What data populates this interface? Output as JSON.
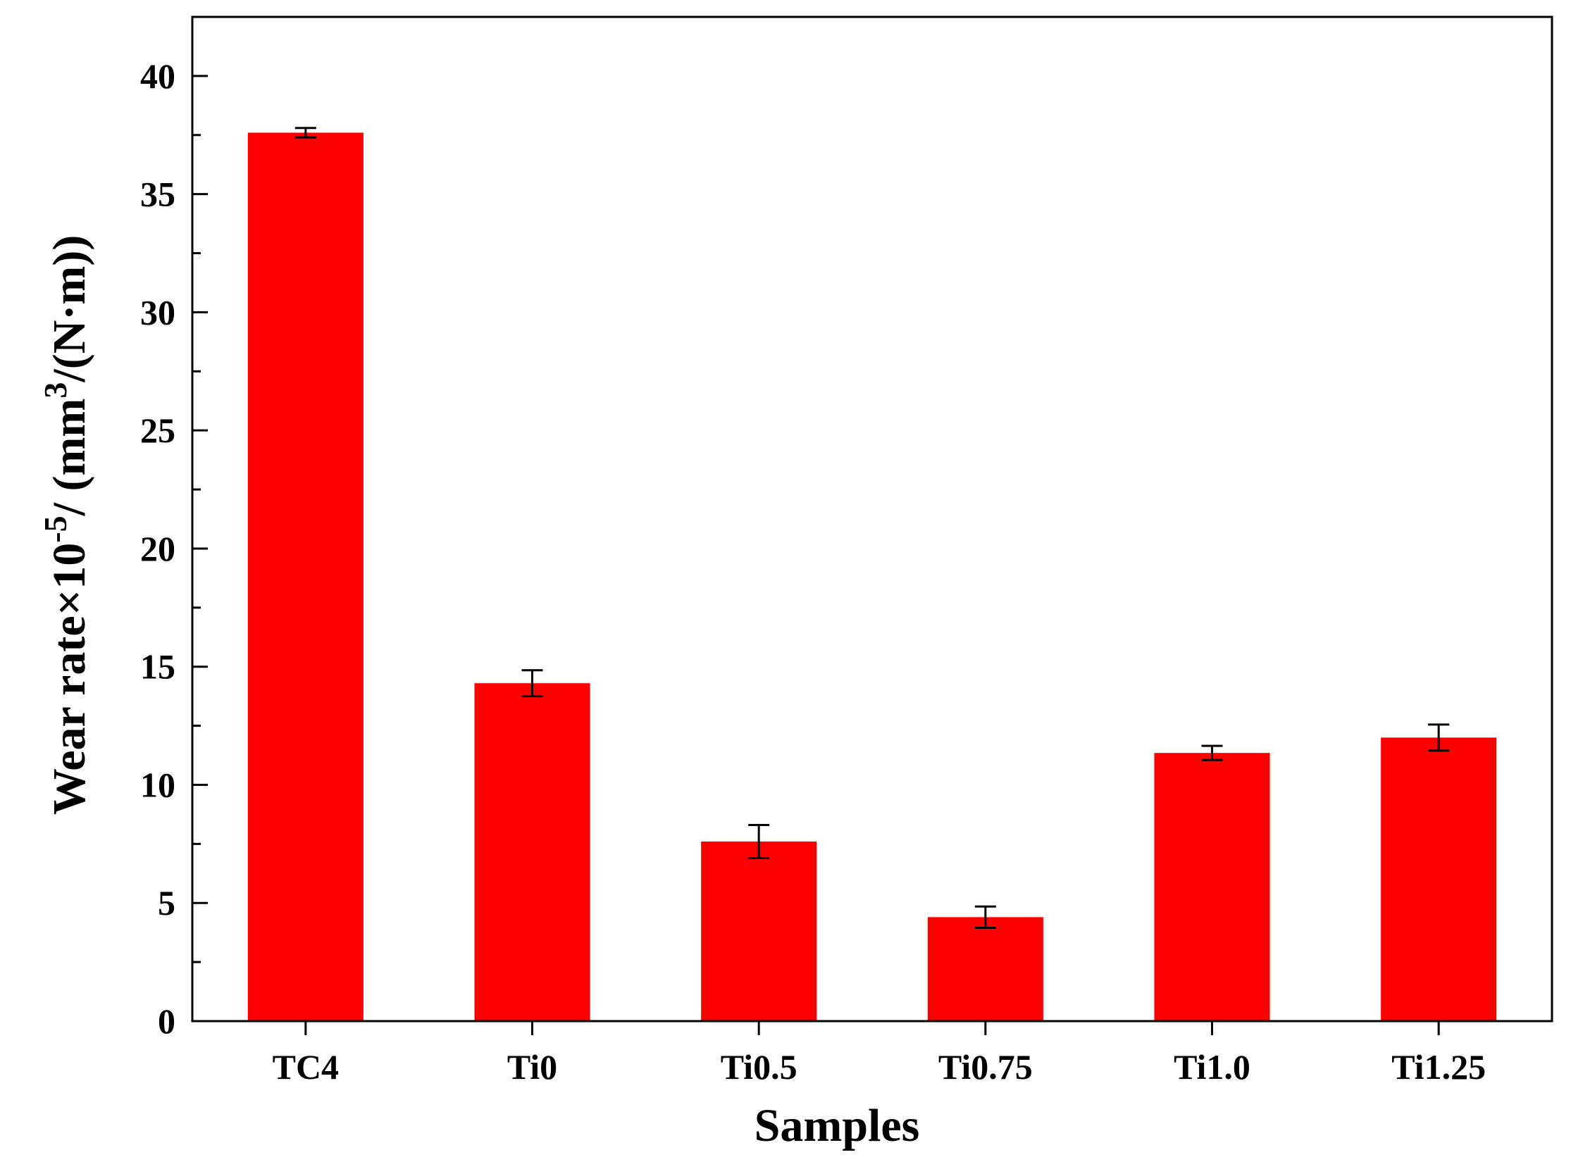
{
  "chart_data": {
    "type": "bar",
    "categories": [
      "TC4",
      "Ti0",
      "Ti0.5",
      "Ti0.75",
      "Ti1.0",
      "Ti1.25"
    ],
    "values": [
      37.6,
      14.3,
      7.6,
      4.4,
      11.35,
      12.0
    ],
    "errors": [
      0.2,
      0.55,
      0.7,
      0.45,
      0.3,
      0.55
    ],
    "xlabel": "Samples",
    "ylabel": {
      "prefix": "Wear rate×10",
      "exponent": "-5",
      "middle": "/ (mm",
      "unit_exponent": "3",
      "suffix": "/(N·m))"
    },
    "ylim": [
      0,
      42.5
    ],
    "yticks": [
      0,
      5,
      10,
      15,
      20,
      25,
      30,
      35,
      40
    ],
    "grid": false,
    "bar_color": "#ff0000"
  }
}
